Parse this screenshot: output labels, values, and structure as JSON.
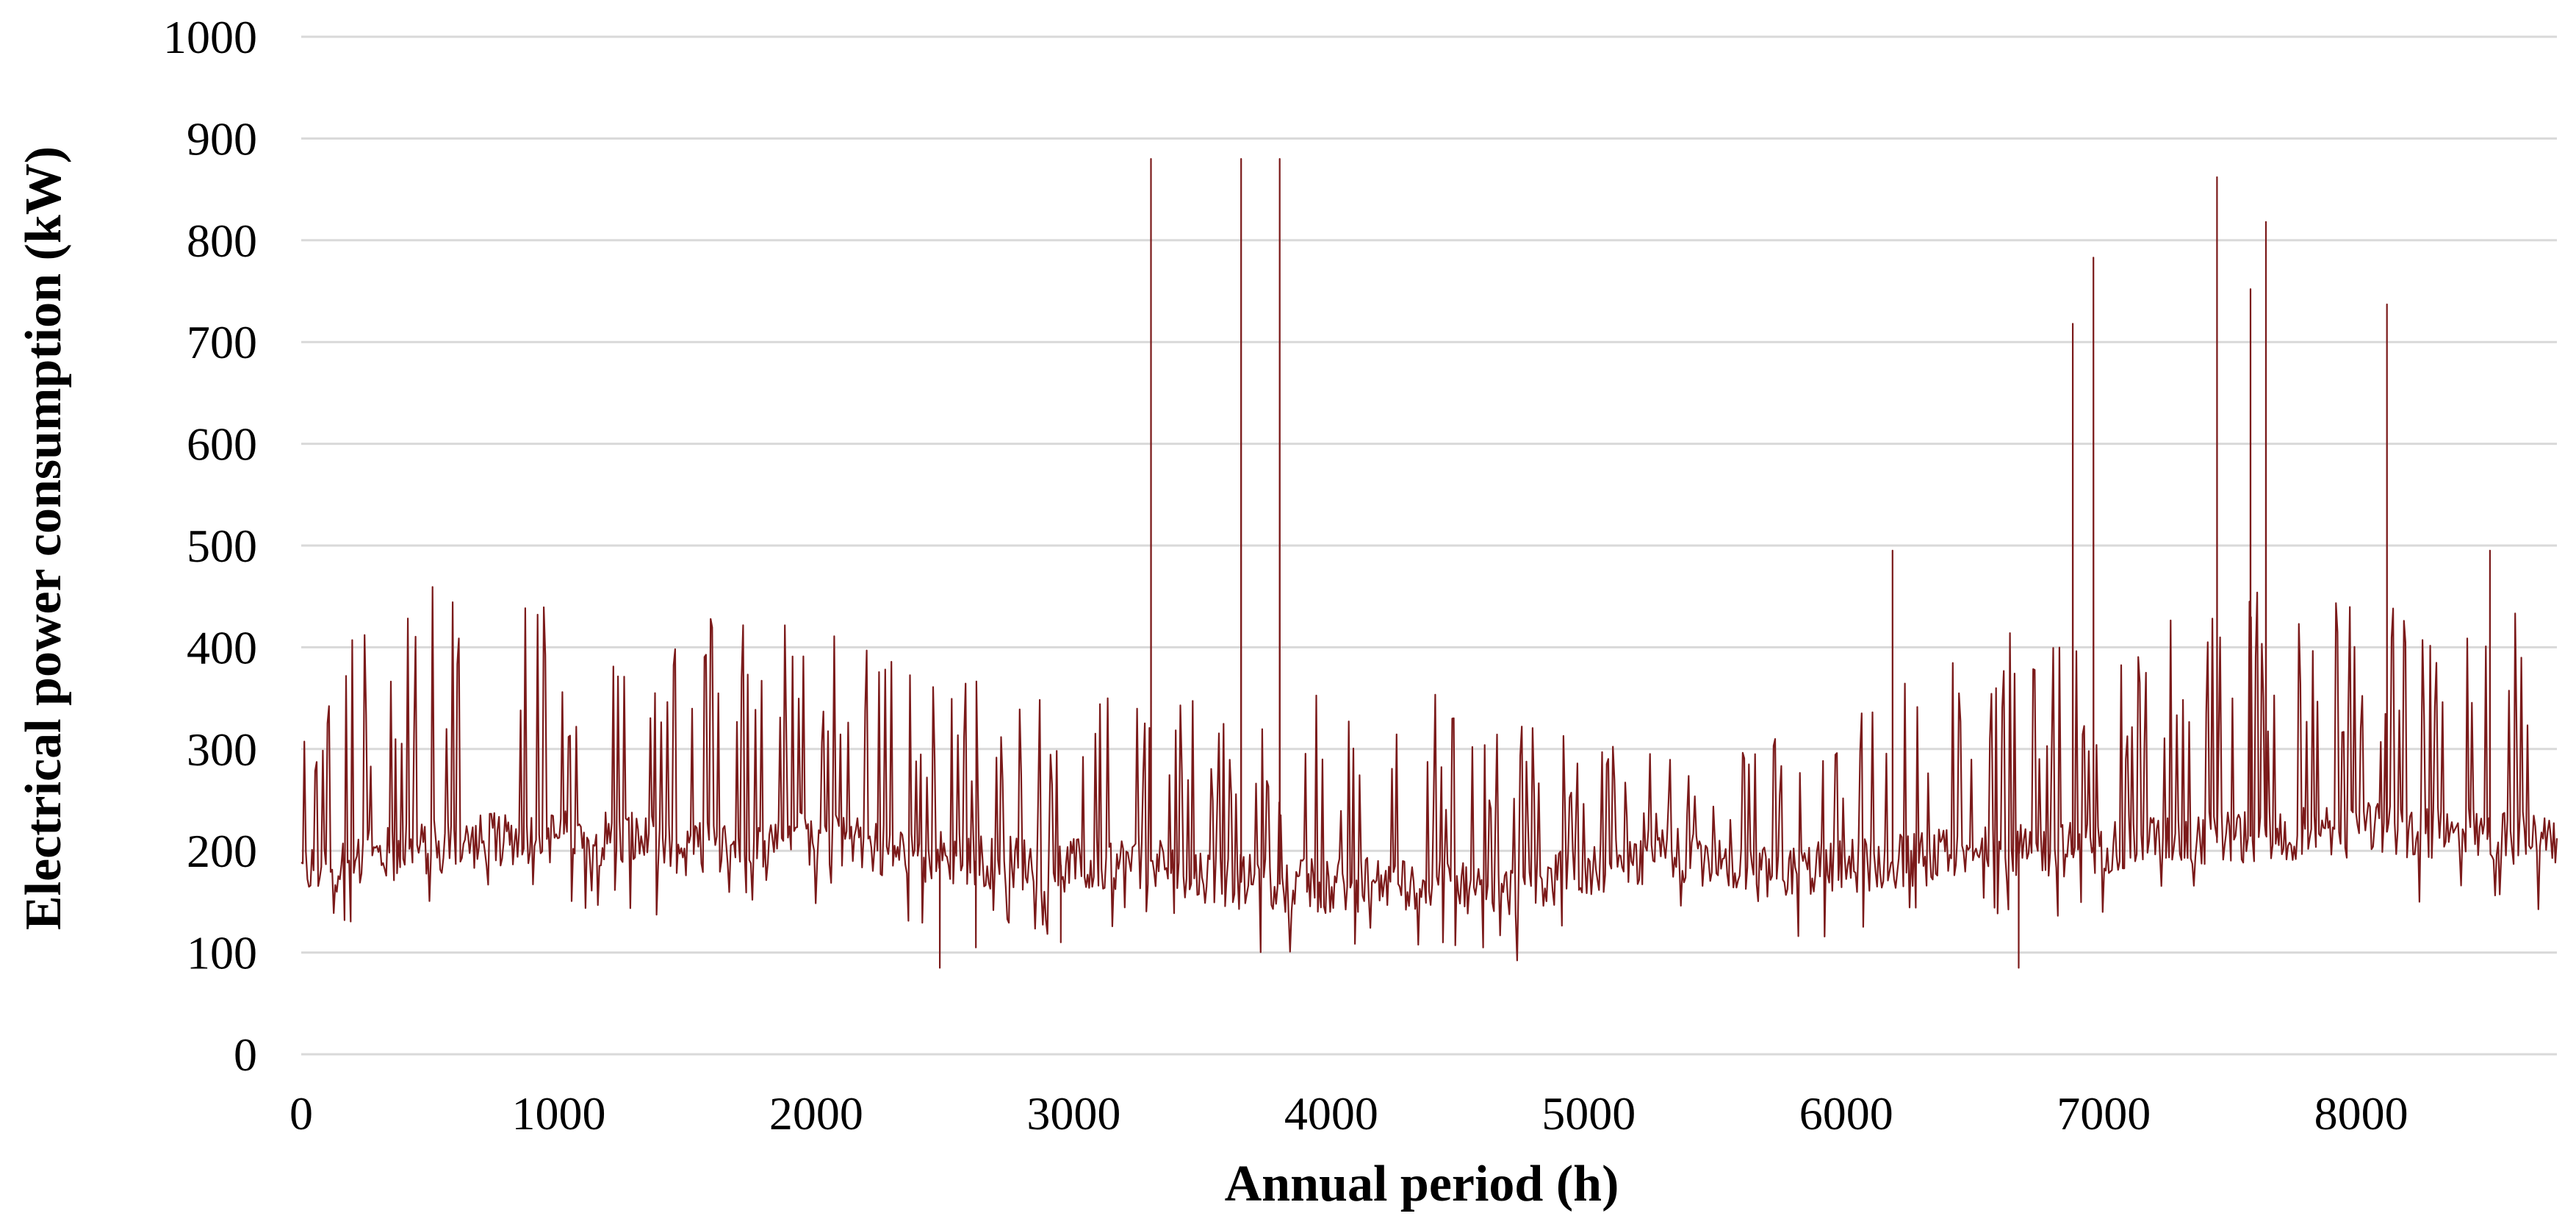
{
  "chart_data": {
    "type": "line",
    "title": "",
    "xlabel": "Annual period (h)",
    "ylabel": "Electrical power consumption (kW)",
    "xlim": [
      0,
      8760
    ],
    "ylim": [
      0,
      1000
    ],
    "x_ticks": [
      0,
      1000,
      2000,
      3000,
      4000,
      5000,
      6000,
      7000,
      8000
    ],
    "y_ticks": [
      0,
      100,
      200,
      300,
      400,
      500,
      600,
      700,
      800,
      900,
      1000
    ],
    "x_tick_labels": [
      "0",
      "1000",
      "2000",
      "3000",
      "4000",
      "5000",
      "6000",
      "7000",
      "8000"
    ],
    "y_tick_labels": [
      "0",
      "100",
      "200",
      "300",
      "400",
      "500",
      "600",
      "700",
      "800",
      "900",
      "1000"
    ],
    "grid": "horizontal",
    "legend": "none",
    "series": [
      {
        "name": "Electrical power consumption",
        "color": "#7b1a1a",
        "sampling_step_h": 6,
        "baseline_profile": {
          "x": [
            0,
            400,
            900,
            1300,
            1500,
            1900,
            2200,
            2600,
            3000,
            3300,
            3600,
            4000,
            4400,
            4700,
            5000,
            5300,
            5600,
            6000,
            6400,
            6800,
            7200,
            7600,
            8000,
            8400,
            8760
          ],
          "y": [
            180,
            200,
            215,
            210,
            200,
            215,
            205,
            190,
            185,
            190,
            170,
            165,
            170,
            160,
            180,
            200,
            175,
            185,
            195,
            200,
            210,
            215,
            220,
            215,
            210
          ]
        },
        "daily_peak_envelope": {
          "x": [
            0,
            200,
            600,
            1000,
            1400,
            1800,
            2200,
            2600,
            3000,
            3300,
            3600,
            4000,
            4300,
            4600,
            5000,
            5400,
            5600,
            6000,
            6400,
            6800,
            7200,
            7600,
            8000,
            8400,
            8760
          ],
          "y": [
            310,
            440,
            475,
            440,
            430,
            435,
            400,
            380,
            350,
            350,
            355,
            360,
            370,
            330,
            310,
            290,
            300,
            340,
            400,
            430,
            440,
            455,
            440,
            470,
            450
          ]
        },
        "spikes": [
          {
            "x": 3300,
            "y": 880
          },
          {
            "x": 3650,
            "y": 880
          },
          {
            "x": 3800,
            "y": 880
          },
          {
            "x": 6180,
            "y": 495
          },
          {
            "x": 6880,
            "y": 718
          },
          {
            "x": 6960,
            "y": 783
          },
          {
            "x": 7440,
            "y": 862
          },
          {
            "x": 7570,
            "y": 752
          },
          {
            "x": 7630,
            "y": 818
          },
          {
            "x": 8100,
            "y": 737
          },
          {
            "x": 8500,
            "y": 495
          }
        ],
        "dips": [
          {
            "x": 2480,
            "y": 85
          },
          {
            "x": 2620,
            "y": 105
          },
          {
            "x": 2950,
            "y": 110
          },
          {
            "x": 6670,
            "y": 85
          }
        ]
      }
    ]
  }
}
